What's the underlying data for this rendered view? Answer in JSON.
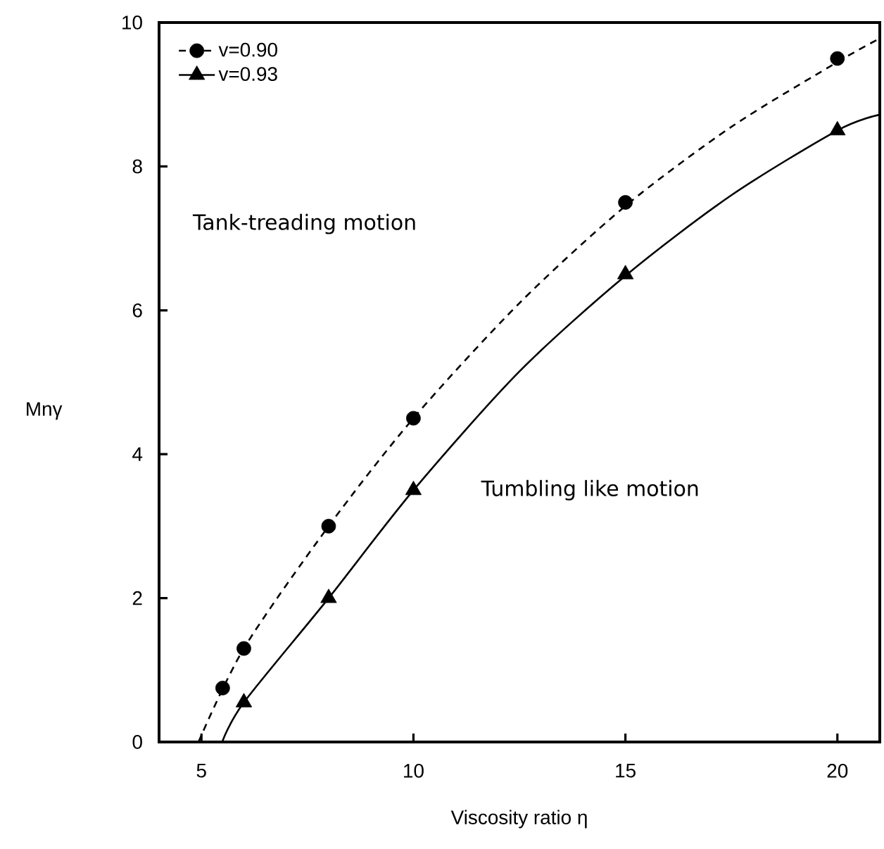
{
  "chart_data": {
    "type": "scatter",
    "xlabel": "Viscosity ratio η",
    "ylabel": "Mnγ",
    "xlim": [
      4,
      21
    ],
    "ylim": [
      0,
      10
    ],
    "xticks": [
      5,
      10,
      15,
      20
    ],
    "yticks": [
      0,
      2,
      4,
      6,
      8,
      10
    ],
    "grid": false,
    "legend": "top left",
    "series": [
      {
        "name": "v=0.90",
        "marker": "circle",
        "line_style": "dashed",
        "color": "#000000",
        "x": [
          5.5,
          6,
          8,
          10,
          15,
          20
        ],
        "values": [
          0.75,
          1.3,
          3,
          4.5,
          7.5,
          9.5
        ]
      },
      {
        "name": "v=0.93",
        "marker": "triangle",
        "line_style": "solid",
        "color": "#000000",
        "x": [
          6,
          8,
          10,
          15,
          20
        ],
        "values": [
          0.55,
          2,
          3.5,
          6.5,
          8.5
        ]
      },
      {
        "type": "line",
        "line_style": "dashed",
        "marker": "none",
        "color": "#000000",
        "x": [
          4.93,
          6,
          8,
          10,
          12.5,
          15,
          17.5,
          20,
          21
        ],
        "values": [
          0,
          1.3,
          3,
          4.5,
          6.1,
          7.45,
          8.55,
          9.45,
          9.78
        ]
      },
      {
        "type": "line",
        "line_style": "solid",
        "marker": "none",
        "color": "#000000",
        "x": [
          5.49,
          6,
          8,
          10,
          12.5,
          15,
          17.5,
          20,
          21
        ],
        "values": [
          0,
          0.55,
          2,
          3.5,
          5.15,
          6.48,
          7.6,
          8.5,
          8.72
        ]
      }
    ],
    "annotations": [
      "Tank-treading motion",
      "Tumbling like motion"
    ]
  }
}
